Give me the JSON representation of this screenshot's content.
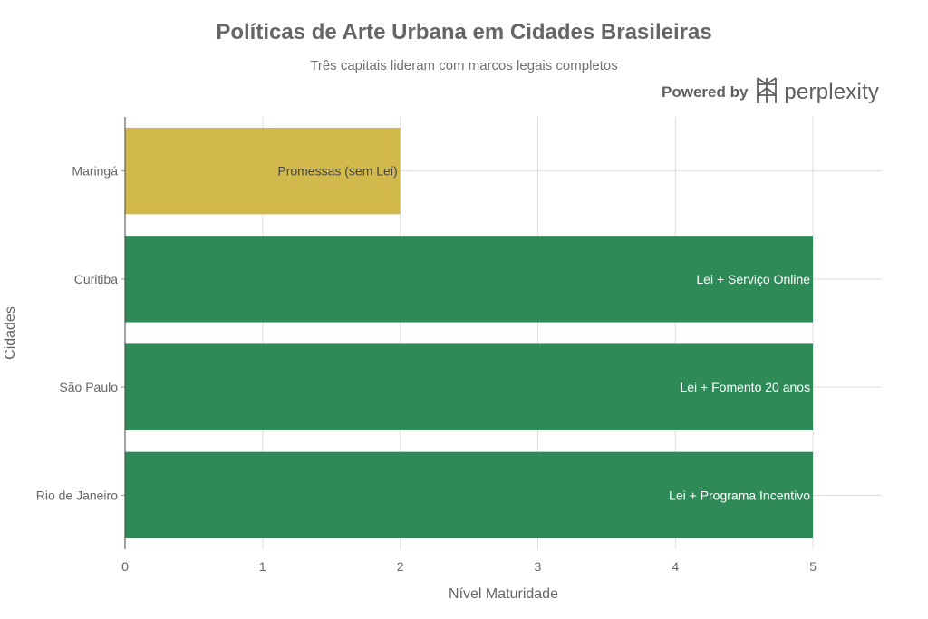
{
  "header": {
    "title": "Políticas de Arte Urbana em Cidades Brasileiras",
    "subtitle": "Três capitais lideram com marcos legais completos"
  },
  "brand": {
    "powered_by": "Powered by",
    "name": "perplexity",
    "icon": "perplexity-logo-icon"
  },
  "colors": {
    "green": "#2e8b57",
    "gold": "#d2b94b",
    "grid": "#dddddd",
    "text": "#666666"
  },
  "chart_data": {
    "type": "bar",
    "orientation": "horizontal",
    "title": "Políticas de Arte Urbana em Cidades Brasileiras",
    "subtitle": "Três capitais lideram com marcos legais completos",
    "xlabel": "Nível Maturidade",
    "ylabel": "Cidades",
    "xlim": [
      0,
      5.5
    ],
    "xticks": [
      "0",
      "1",
      "2",
      "3",
      "4",
      "5"
    ],
    "grid": true,
    "categories": [
      "Rio de Janeiro",
      "São Paulo",
      "Curitiba",
      "Maringá"
    ],
    "values": [
      5,
      5,
      5,
      2
    ],
    "labels": [
      "Lei + Programa Incentivo",
      "Lei + Fomento 20 anos",
      "Lei + Serviço Online",
      "Promessas (sem Lei)"
    ],
    "bar_colors": [
      "#2e8b57",
      "#2e8b57",
      "#2e8b57",
      "#d2b94b"
    ],
    "label_colors": [
      "#ffffff",
      "#ffffff",
      "#ffffff",
      "#444444"
    ]
  }
}
